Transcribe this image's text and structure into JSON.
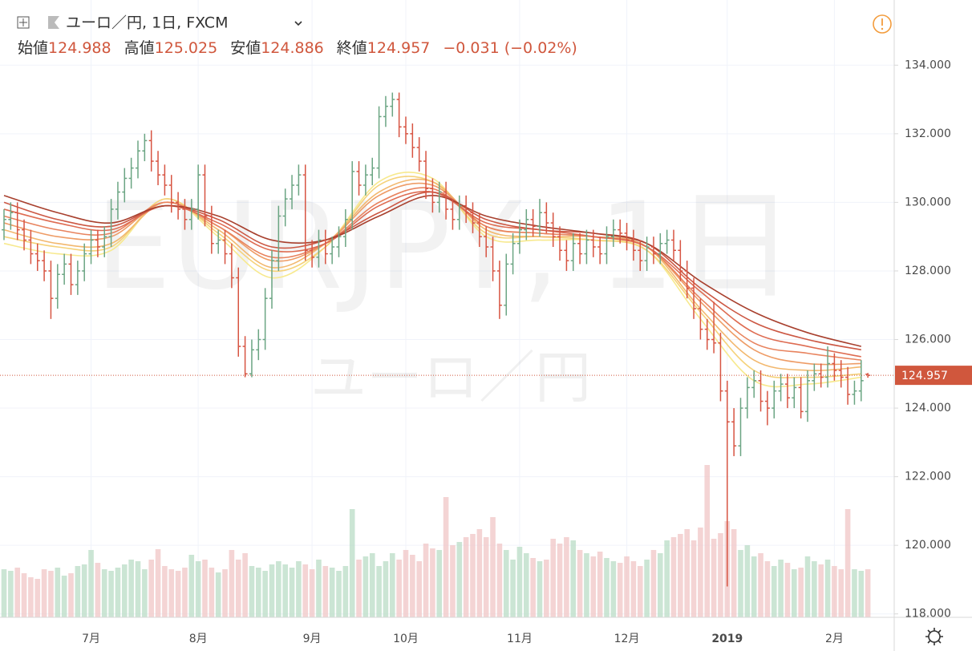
{
  "header": {
    "symbol": "ユーロ／円, 1日, FXCM",
    "ohlc": [
      {
        "label": "始値",
        "value": 124.988
      },
      {
        "label": "高値",
        "value": 125.025
      },
      {
        "label": "安値",
        "value": 124.886
      },
      {
        "label": "終値",
        "value": 124.957
      }
    ],
    "change": "−0.031 (−0.02%)"
  },
  "chart_data": {
    "type": "ohlc",
    "watermark": [
      "EURJPY, 1日",
      "ユーロ／円"
    ],
    "categories": [
      null,
      null,
      null,
      null,
      null,
      null,
      null,
      null,
      null,
      null,
      null,
      null,
      null,
      "7月",
      null,
      null,
      null,
      null,
      null,
      null,
      null,
      null,
      null,
      null,
      null,
      null,
      null,
      null,
      null,
      "8月",
      null,
      null,
      null,
      null,
      null,
      null,
      null,
      null,
      null,
      null,
      null,
      null,
      null,
      null,
      null,
      null,
      "9月",
      null,
      null,
      null,
      null,
      null,
      null,
      null,
      null,
      null,
      null,
      null,
      null,
      null,
      "10月",
      null,
      null,
      null,
      null,
      null,
      null,
      null,
      null,
      null,
      null,
      null,
      null,
      null,
      null,
      null,
      null,
      "11月",
      null,
      null,
      null,
      null,
      null,
      null,
      null,
      null,
      null,
      null,
      null,
      null,
      null,
      null,
      null,
      "12月",
      null,
      null,
      null,
      null,
      null,
      null,
      null,
      null,
      null,
      null,
      null,
      null,
      null,
      null,
      "2019",
      null,
      null,
      null,
      null,
      null,
      null,
      null,
      null,
      null,
      null,
      null,
      null,
      null,
      null,
      null,
      "2月",
      null,
      null,
      null,
      null,
      null
    ],
    "open": [
      129.2,
      129.5,
      129.7,
      129.2,
      128.9,
      128.5,
      128.3,
      128.0,
      127.2,
      127.9,
      128.2,
      127.6,
      128.0,
      128.5,
      128.9,
      128.7,
      129.0,
      129.8,
      130.3,
      130.7,
      131.0,
      131.5,
      131.8,
      131.2,
      130.8,
      130.5,
      130.0,
      129.8,
      129.5,
      129.8,
      130.8,
      129.6,
      128.8,
      128.9,
      128.5,
      127.8,
      125.8,
      125.0,
      125.7,
      126.0,
      127.2,
      128.3,
      129.6,
      130.1,
      130.5,
      130.8,
      128.6,
      128.4,
      128.9,
      128.5,
      128.7,
      129.0,
      129.5,
      130.9,
      130.5,
      130.8,
      131.0,
      132.5,
      132.8,
      133.0,
      132.2,
      132.0,
      131.6,
      131.2,
      130.4,
      130.0,
      130.3,
      129.8,
      129.5,
      129.9,
      129.7,
      129.4,
      129.0,
      128.7,
      128.0,
      127.0,
      128.2,
      128.8,
      129.2,
      129.5,
      129.3,
      129.7,
      129.4,
      129.0,
      128.6,
      128.3,
      128.8,
      128.5,
      128.9,
      128.7,
      128.5,
      129.0,
      129.2,
      129.1,
      128.9,
      128.6,
      128.3,
      128.7,
      128.5,
      128.8,
      128.9,
      128.6,
      128.0,
      127.5,
      126.9,
      126.3,
      126.0,
      125.9,
      124.5,
      123.6,
      122.9,
      124.0,
      124.6,
      124.8,
      124.2,
      124.0,
      124.5,
      124.7,
      124.3,
      124.6,
      123.9,
      124.8,
      125.0,
      124.9,
      125.3,
      125.1,
      124.9,
      124.4,
      124.5,
      124.988
    ],
    "high": [
      129.8,
      130.0,
      130.0,
      129.5,
      129.2,
      128.8,
      128.6,
      128.3,
      128.2,
      128.5,
      128.5,
      128.3,
      128.8,
      129.2,
      129.2,
      129.3,
      130.1,
      130.6,
      131.0,
      131.3,
      131.8,
      132.0,
      132.1,
      131.5,
      131.1,
      130.8,
      130.3,
      130.1,
      130.1,
      131.1,
      131.1,
      129.9,
      129.2,
      129.2,
      128.8,
      128.1,
      126.1,
      126.0,
      126.3,
      127.5,
      128.6,
      129.9,
      130.4,
      130.8,
      131.1,
      131.1,
      128.9,
      129.2,
      129.2,
      129.0,
      129.3,
      129.8,
      131.2,
      131.2,
      131.1,
      131.3,
      132.8,
      133.1,
      133.2,
      133.2,
      132.5,
      132.3,
      131.9,
      131.5,
      130.7,
      130.6,
      130.6,
      130.1,
      130.2,
      130.2,
      130.0,
      129.7,
      129.3,
      129.0,
      128.3,
      128.5,
      129.1,
      129.5,
      129.8,
      129.8,
      130.1,
      130.0,
      129.7,
      129.3,
      128.9,
      129.1,
      129.1,
      129.2,
      129.2,
      129.0,
      129.3,
      129.5,
      129.5,
      129.4,
      129.2,
      128.9,
      129.0,
      129.0,
      129.1,
      129.2,
      129.2,
      128.9,
      128.3,
      127.8,
      127.2,
      126.6,
      127.1,
      126.2,
      124.8,
      124.0,
      124.3,
      124.9,
      125.1,
      125.1,
      124.5,
      124.8,
      125.0,
      125.0,
      124.9,
      124.9,
      125.1,
      125.3,
      125.3,
      125.8,
      125.6,
      125.4,
      125.2,
      124.8,
      125.4,
      125.025
    ],
    "low": [
      128.9,
      129.2,
      128.9,
      128.6,
      128.2,
      128.0,
      127.7,
      126.6,
      126.9,
      127.6,
      127.3,
      127.3,
      127.7,
      128.2,
      128.4,
      128.4,
      128.7,
      129.5,
      130.0,
      130.4,
      130.7,
      131.2,
      130.9,
      130.5,
      130.2,
      129.7,
      129.5,
      129.2,
      129.2,
      129.5,
      129.3,
      128.5,
      128.5,
      128.2,
      127.5,
      125.5,
      124.9,
      124.9,
      125.4,
      125.7,
      126.9,
      128.0,
      129.3,
      129.8,
      130.2,
      128.3,
      128.1,
      128.1,
      128.2,
      128.2,
      128.4,
      128.7,
      129.2,
      130.2,
      130.2,
      130.5,
      130.7,
      132.2,
      132.5,
      131.9,
      131.7,
      131.3,
      130.9,
      130.1,
      129.7,
      129.7,
      129.5,
      129.2,
      129.2,
      129.4,
      129.1,
      128.7,
      128.4,
      127.7,
      126.6,
      126.7,
      127.9,
      128.5,
      128.9,
      129.0,
      129.0,
      129.1,
      128.7,
      128.3,
      128.0,
      128.0,
      128.2,
      128.2,
      128.4,
      128.2,
      128.2,
      128.7,
      128.8,
      128.6,
      128.3,
      128.0,
      128.0,
      128.2,
      128.2,
      128.5,
      128.3,
      127.7,
      127.2,
      126.6,
      126.0,
      125.7,
      125.6,
      124.2,
      118.8,
      122.6,
      122.6,
      123.7,
      124.3,
      123.9,
      123.5,
      123.7,
      124.2,
      124.0,
      124.0,
      123.7,
      123.6,
      124.5,
      124.6,
      124.6,
      124.8,
      124.6,
      124.1,
      124.1,
      124.2,
      124.886
    ],
    "close": [
      129.5,
      129.7,
      129.2,
      128.9,
      128.5,
      128.3,
      128.0,
      127.2,
      127.9,
      128.2,
      127.6,
      128.0,
      128.5,
      128.9,
      128.7,
      129.0,
      129.8,
      130.3,
      130.7,
      131.0,
      131.5,
      131.8,
      131.2,
      130.8,
      130.5,
      130.0,
      129.8,
      129.5,
      129.8,
      130.8,
      129.6,
      128.8,
      128.9,
      128.5,
      127.8,
      125.8,
      125.0,
      125.7,
      126.0,
      127.2,
      128.3,
      129.6,
      130.1,
      130.5,
      130.8,
      128.6,
      128.4,
      128.9,
      128.5,
      128.7,
      129.0,
      129.5,
      130.9,
      130.5,
      130.8,
      131.0,
      132.5,
      132.8,
      133.0,
      132.2,
      132.0,
      131.6,
      131.2,
      130.4,
      130.0,
      130.3,
      129.8,
      129.5,
      129.9,
      129.7,
      129.4,
      129.0,
      128.7,
      128.0,
      127.0,
      128.2,
      128.8,
      129.2,
      129.5,
      129.3,
      129.7,
      129.4,
      129.0,
      128.6,
      128.3,
      128.8,
      128.5,
      128.9,
      128.7,
      128.5,
      129.0,
      129.2,
      129.1,
      128.9,
      128.6,
      128.3,
      128.7,
      128.5,
      128.8,
      128.9,
      128.6,
      128.0,
      127.5,
      126.9,
      126.3,
      126.0,
      125.9,
      124.5,
      123.6,
      122.9,
      124.0,
      124.6,
      124.8,
      124.2,
      124.0,
      124.5,
      124.7,
      124.3,
      124.6,
      123.9,
      124.8,
      125.0,
      124.9,
      125.3,
      125.1,
      124.9,
      124.4,
      124.5,
      124.8,
      124.957
    ],
    "volume": [
      60,
      58,
      62,
      55,
      50,
      48,
      60,
      58,
      62,
      52,
      55,
      64,
      66,
      84,
      68,
      60,
      58,
      62,
      66,
      72,
      70,
      60,
      72,
      85,
      64,
      60,
      58,
      62,
      78,
      70,
      72,
      62,
      56,
      60,
      84,
      72,
      80,
      64,
      62,
      58,
      66,
      70,
      66,
      62,
      70,
      66,
      60,
      72,
      64,
      62,
      58,
      64,
      135,
      72,
      76,
      80,
      64,
      70,
      80,
      72,
      84,
      78,
      70,
      92,
      86,
      84,
      150,
      90,
      94,
      100,
      104,
      110,
      100,
      125,
      92,
      84,
      72,
      88,
      80,
      74,
      70,
      72,
      98,
      92,
      100,
      96,
      84,
      80,
      76,
      82,
      74,
      70,
      68,
      76,
      70,
      64,
      72,
      84,
      80,
      96,
      100,
      104,
      110,
      96,
      112,
      190,
      98,
      105,
      120,
      110,
      84,
      90,
      76,
      80,
      70,
      64,
      72,
      68,
      60,
      62,
      76,
      70,
      66,
      72,
      64,
      60,
      135,
      60,
      58,
      60
    ],
    "up_color": "#6ba583",
    "down_color": "#d75442",
    "up_volume_color": "#b9dcc6",
    "down_volume_color": "#f0c6c6",
    "ma_x": [
      0,
      8,
      16,
      24,
      32,
      40,
      48,
      56,
      64,
      72,
      80,
      88,
      96,
      104,
      112,
      120,
      128
    ],
    "moving_averages": [
      {
        "color": "#f7e98e",
        "values": [
          128.8,
          128.5,
          128.6,
          130.1,
          129.0,
          127.8,
          128.7,
          130.6,
          130.7,
          129.0,
          128.9,
          128.9,
          128.6,
          126.6,
          124.8,
          124.7,
          124.9
        ]
      },
      {
        "color": "#f5d27a",
        "values": [
          129.0,
          128.7,
          128.7,
          130.1,
          129.1,
          128.0,
          128.7,
          130.5,
          130.6,
          129.1,
          129.0,
          128.9,
          128.6,
          126.8,
          125.1,
          124.9,
          125.0
        ]
      },
      {
        "color": "#f2b86e",
        "values": [
          129.2,
          128.8,
          128.8,
          130.0,
          129.2,
          128.1,
          128.8,
          130.3,
          130.6,
          129.2,
          129.0,
          129.0,
          128.7,
          126.9,
          125.4,
          125.1,
          125.2
        ]
      },
      {
        "color": "#ee9c66",
        "values": [
          129.4,
          129.0,
          129.0,
          130.0,
          129.3,
          128.3,
          128.8,
          130.2,
          130.5,
          129.3,
          129.1,
          129.0,
          128.7,
          127.1,
          125.7,
          125.3,
          125.3
        ]
      },
      {
        "color": "#e8835e",
        "values": [
          129.6,
          129.2,
          129.1,
          130.0,
          129.3,
          128.4,
          128.8,
          130.0,
          130.4,
          129.3,
          129.1,
          129.0,
          128.7,
          127.2,
          125.9,
          125.6,
          125.4
        ]
      },
      {
        "color": "#de6c52",
        "values": [
          129.8,
          129.4,
          129.2,
          129.9,
          129.4,
          128.6,
          128.8,
          129.9,
          130.3,
          129.4,
          129.2,
          129.0,
          128.7,
          127.4,
          126.2,
          125.8,
          125.5
        ]
      },
      {
        "color": "#cc5844",
        "values": [
          130.0,
          129.5,
          129.3,
          129.9,
          129.5,
          128.7,
          128.9,
          129.7,
          130.3,
          129.5,
          129.2,
          129.1,
          128.8,
          127.5,
          126.5,
          126.0,
          125.7
        ]
      },
      {
        "color": "#a8402e",
        "values": [
          130.2,
          129.7,
          129.4,
          129.9,
          129.6,
          128.9,
          128.9,
          129.6,
          130.2,
          129.6,
          129.3,
          129.1,
          128.8,
          127.7,
          126.8,
          126.2,
          125.8
        ]
      }
    ],
    "ylim": [
      117.9,
      135.9
    ],
    "yticks": [
      {
        "value": 118,
        "label": "118.000"
      },
      {
        "value": 120,
        "label": "120.000"
      },
      {
        "value": 122,
        "label": "122.000"
      },
      {
        "value": 124,
        "label": "124.000"
      },
      {
        "value": 126,
        "label": "126.000"
      },
      {
        "value": 128,
        "label": "128.000"
      },
      {
        "value": 130,
        "label": "130.000"
      },
      {
        "value": 132,
        "label": "132.000"
      },
      {
        "value": 134,
        "label": "134.000"
      }
    ],
    "grid": true,
    "last_price_color": "#d0573d"
  }
}
